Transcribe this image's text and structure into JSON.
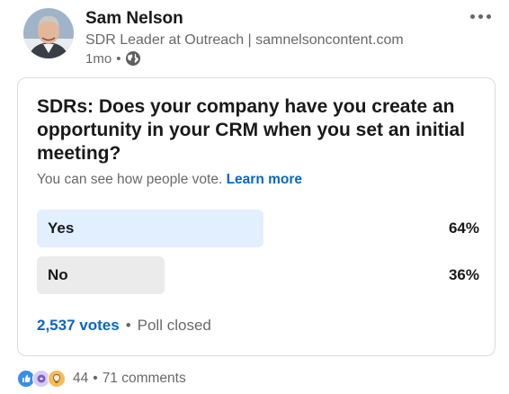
{
  "author": {
    "name": "Sam Nelson",
    "headline": "SDR Leader at Outreach | samnelsoncontent.com",
    "timestamp": "1mo",
    "separator": "•",
    "visibility_icon": "globe-icon"
  },
  "post_menu_icon": "ellipsis-icon",
  "poll": {
    "question": "SDRs: Does your company have you create an opportunity in your CRM when you set an initial meeting?",
    "visibility_text": "You can see how people vote.",
    "learn_more": "Learn more",
    "options": [
      {
        "label": "Yes",
        "percent": "64%",
        "share": 0.64,
        "highlight": "#e2efff"
      },
      {
        "label": "No",
        "percent": "36%",
        "share": 0.36,
        "highlight": "#ebebeb"
      }
    ],
    "votes": "2,537 votes",
    "separator": "•",
    "status": "Poll closed"
  },
  "social": {
    "reaction_icons": [
      "like-icon",
      "celebrate-icon",
      "insightful-icon"
    ],
    "reactions_count": "44",
    "separator": "•",
    "comments": "71 comments"
  },
  "colors": {
    "link_blue": "#0a66c2",
    "winner_bar": "#e2efff",
    "loser_bar": "#ebebeb"
  }
}
